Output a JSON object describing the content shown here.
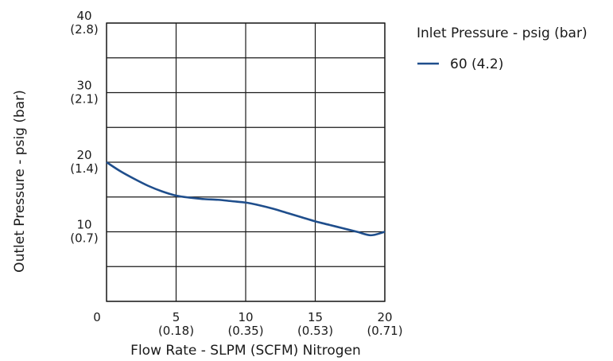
{
  "chart_data": {
    "type": "line",
    "xlabel": "Flow Rate - SLPM (SCFM) Nitrogen",
    "ylabel": "Outlet Pressure - psig (bar)",
    "xlim": [
      0,
      20
    ],
    "ylim": [
      0,
      40
    ],
    "grid": true,
    "legend_position": "top-right",
    "legend_title": "Inlet Pressure - psig (bar)",
    "x_ticks": [
      {
        "value": 0,
        "label": "0",
        "sublabel": ""
      },
      {
        "value": 5,
        "label": "5",
        "sublabel": "(0.18)"
      },
      {
        "value": 10,
        "label": "10",
        "sublabel": "(0.35)"
      },
      {
        "value": 15,
        "label": "15",
        "sublabel": "(0.53)"
      },
      {
        "value": 20,
        "label": "20",
        "sublabel": "(0.71)"
      }
    ],
    "y_ticks": [
      {
        "value": 10,
        "label": "10",
        "sublabel": "(0.7)"
      },
      {
        "value": 20,
        "label": "20",
        "sublabel": "(1.4)"
      },
      {
        "value": 30,
        "label": "30",
        "sublabel": "(2.1)"
      },
      {
        "value": 40,
        "label": "40",
        "sublabel": "(2.8)"
      }
    ],
    "x_gridlines": [
      0,
      5,
      10,
      15,
      20
    ],
    "y_gridlines": [
      0,
      5,
      10,
      15,
      20,
      25,
      30,
      35,
      40
    ],
    "series": [
      {
        "name": "60 (4.2)",
        "color": "#1f4e8c",
        "x": [
          0,
          1,
          2,
          3,
          4,
          5,
          6,
          7,
          8,
          9,
          10,
          11,
          12,
          13,
          14,
          15,
          16,
          17,
          18,
          19,
          20
        ],
        "y": [
          20,
          18.7,
          17.6,
          16.6,
          15.8,
          15.2,
          14.9,
          14.7,
          14.6,
          14.4,
          14.2,
          13.8,
          13.3,
          12.7,
          12.1,
          11.5,
          11.0,
          10.5,
          10.0,
          9.5,
          10.0
        ]
      }
    ]
  }
}
